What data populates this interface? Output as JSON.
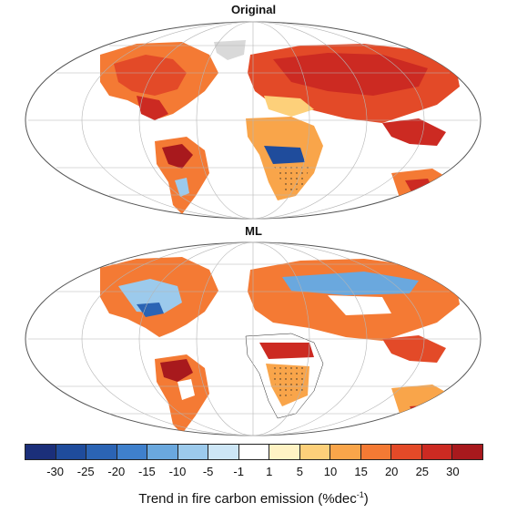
{
  "panels": [
    {
      "title": "Original"
    },
    {
      "title": "ML"
    }
  ],
  "colorbar": {
    "colors": [
      "#1b2f7a",
      "#1f4c9c",
      "#2b64b4",
      "#3f80cc",
      "#6aa8de",
      "#9ccaec",
      "#cde6f6",
      "#ffffff",
      "#fff3c4",
      "#fdd07a",
      "#f9a54a",
      "#f47a34",
      "#e34a28",
      "#cc2a22",
      "#a8191d"
    ],
    "tick_labels": [
      "-30",
      "-25",
      "-20",
      "-15",
      "-10",
      "-5",
      "-1",
      "1",
      "5",
      "10",
      "15",
      "20",
      "25",
      "30"
    ],
    "label_text": "Trend in fire carbon emission (%dec",
    "label_sup": "-1",
    "label_close": ")"
  }
}
